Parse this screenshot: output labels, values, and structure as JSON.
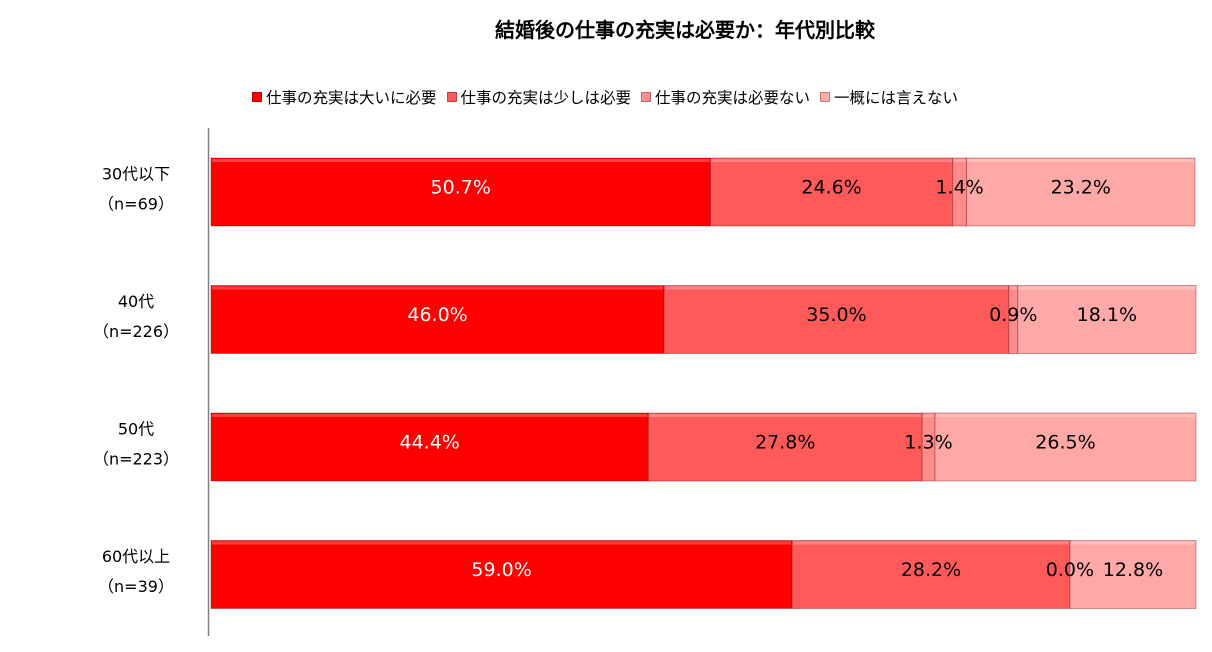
{
  "chart_data": {
    "type": "bar",
    "orientation": "horizontal",
    "stacked": "100%",
    "title": "結婚後の仕事の充実は必要か：年代別比較",
    "categories": [
      [
        "30代以下",
        "（n=69）"
      ],
      [
        "40代",
        "（n=226）"
      ],
      [
        "50代",
        "（n=223）"
      ],
      [
        "60代以上",
        "（n=39）"
      ]
    ],
    "series": [
      {
        "name": "仕事の充実は大いに必要",
        "color": "#ff0000",
        "values": [
          50.7,
          46.0,
          44.4,
          59.0
        ],
        "labels": [
          "50.7%",
          "46.0%",
          "44.4%",
          "59.0%"
        ]
      },
      {
        "name": "仕事の充実は少しは必要",
        "color": "#ff5a5a",
        "values": [
          24.6,
          35.0,
          27.8,
          28.2
        ],
        "labels": [
          "24.6%",
          "35.0%",
          "27.8%",
          "28.2%"
        ]
      },
      {
        "name": "仕事の充実は必要ない",
        "color": "#ff8c8c",
        "values": [
          1.4,
          0.9,
          1.3,
          0.0
        ],
        "labels": [
          "1.4%",
          "0.9%",
          "1.3%",
          "0.0%"
        ]
      },
      {
        "name": "一概には言えない",
        "color": "#ffa8a8",
        "values": [
          23.2,
          18.1,
          26.5,
          12.8
        ],
        "labels": [
          "23.2%",
          "18.1%",
          "26.5%",
          "12.8%"
        ]
      }
    ],
    "legend": "top",
    "grid": false
  }
}
